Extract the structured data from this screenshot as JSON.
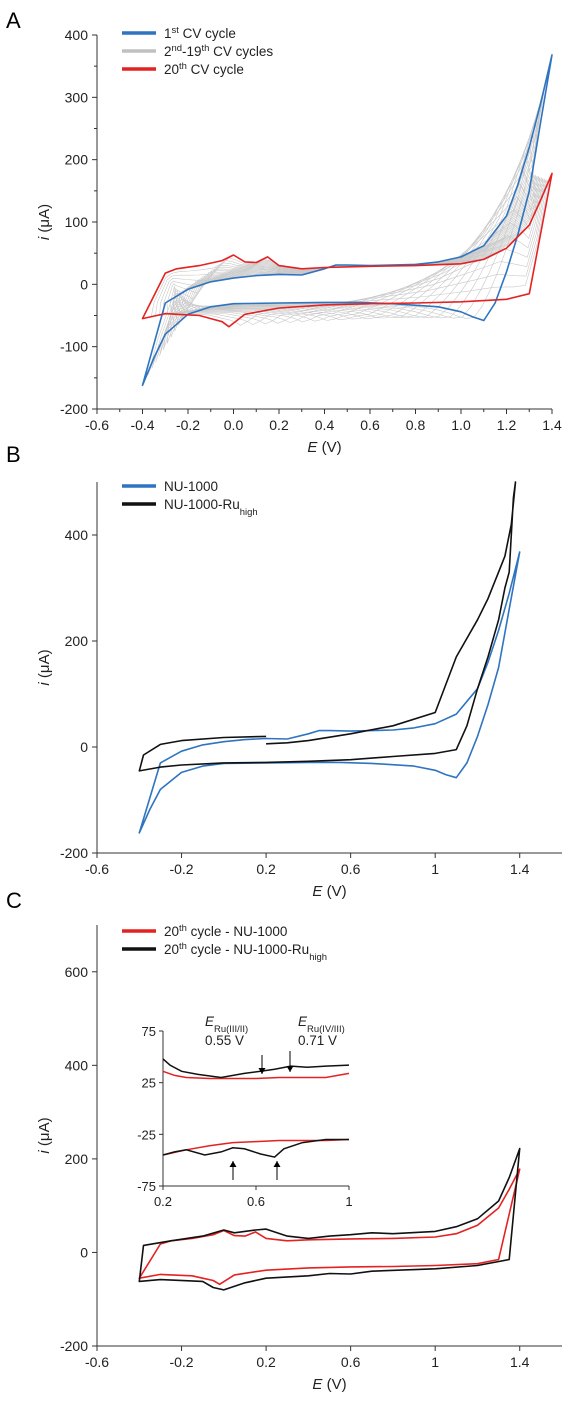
{
  "chart_data": [
    {
      "panel": "A",
      "type": "line",
      "xlabel_sym": "E",
      "xlabel_unit": "(V)",
      "ylabel_sym": "i",
      "ylabel_unit": "(μA)",
      "xlim": [
        -0.6,
        1.4
      ],
      "ylim": [
        -200,
        400
      ],
      "xticks": [
        -0.6,
        -0.4,
        -0.2,
        0.0,
        0.2,
        0.4,
        0.6,
        0.8,
        1.0,
        1.2,
        1.4
      ],
      "xtick_labels": [
        "-0.6",
        "-0.4",
        "-0.2",
        "0.0",
        "0.2",
        "0.4",
        "0.6",
        "0.8",
        "1.0",
        "1.2",
        "1.4"
      ],
      "yticks": [
        -200,
        -100,
        0,
        100,
        200,
        300,
        400
      ],
      "ytick_labels": [
        "-200",
        "-100",
        "0",
        "100",
        "200",
        "300",
        "400"
      ],
      "legend": [
        {
          "pre": "1",
          "sup": "st",
          "post": " CV cycle",
          "color": "#2f74c0"
        },
        {
          "pre": "2",
          "sup": "nd",
          "mid": "-19",
          "sup2": "th",
          "post": " CV cycles",
          "color": "#c0c0c0"
        },
        {
          "pre": "20",
          "sup": "th",
          "post": " CV cycle",
          "color": "#e42222"
        }
      ],
      "series": [
        {
          "key": "c1",
          "color": "#2f74c0",
          "x": [
            0.3,
            0.2,
            0.1,
            0.0,
            -0.1,
            -0.2,
            -0.3,
            -0.4,
            -0.35,
            -0.3,
            -0.2,
            -0.1,
            0.0,
            0.2,
            0.4,
            0.55,
            0.7,
            0.9,
            1.0,
            1.05,
            1.1,
            1.15,
            1.2,
            1.25,
            1.3,
            1.35,
            1.4,
            1.35,
            1.3,
            1.25,
            1.2,
            1.1,
            1.0,
            0.9,
            0.8,
            0.6,
            0.5,
            0.45,
            0.4,
            0.3
          ],
          "y": [
            15,
            16,
            14,
            10,
            4,
            -8,
            -30,
            -162,
            -118,
            -80,
            -48,
            -36,
            -31,
            -30,
            -29,
            -29,
            -31,
            -36,
            -44,
            -52,
            -58,
            -30,
            20,
            80,
            150,
            260,
            368,
            290,
            220,
            160,
            110,
            62,
            44,
            36,
            32,
            30,
            31,
            31,
            25,
            15
          ]
        },
        {
          "key": "c20",
          "color": "#e42222",
          "x": [
            0.3,
            0.2,
            0.15,
            0.1,
            0.05,
            0.0,
            -0.05,
            -0.15,
            -0.25,
            -0.3,
            -0.4,
            -0.3,
            -0.25,
            -0.15,
            -0.1,
            -0.05,
            -0.02,
            0.05,
            0.2,
            0.4,
            0.6,
            0.8,
            1.0,
            1.2,
            1.3,
            1.4,
            1.35,
            1.3,
            1.2,
            1.1,
            1.0,
            0.8,
            0.6,
            0.4,
            0.3
          ],
          "y": [
            25,
            30,
            44,
            35,
            36,
            47,
            38,
            30,
            25,
            18,
            -55,
            -47,
            -48,
            -50,
            -55,
            -60,
            -68,
            -48,
            -38,
            -33,
            -31,
            -30,
            -28,
            -24,
            -15,
            178,
            135,
            95,
            58,
            40,
            33,
            30,
            29,
            27,
            25
          ]
        }
      ],
      "gray_cycles": 18
    },
    {
      "panel": "B",
      "type": "line",
      "xlabel_sym": "E",
      "xlabel_unit": "(V)",
      "ylabel_sym": "i",
      "ylabel_unit": "(μA)",
      "xlim": [
        -0.6,
        1.6
      ],
      "ylim": [
        -200,
        500
      ],
      "xticks": [
        -0.6,
        -0.2,
        0.2,
        0.6,
        1.0,
        1.4
      ],
      "xtick_labels": [
        "-0.6",
        "-0.2",
        "0.2",
        "0.6",
        "1",
        "1.4"
      ],
      "yticks": [
        -200,
        0,
        200,
        400
      ],
      "ytick_labels": [
        "-200",
        "0",
        "200",
        "400"
      ],
      "legend": [
        {
          "pre": "NU-1000",
          "color": "#2f74c0"
        },
        {
          "pre": "NU-1000-Ru",
          "sub": "high",
          "color": "#111111"
        }
      ],
      "series": [
        {
          "key": "nu",
          "color": "#2f74c0",
          "x": [
            0.3,
            0.2,
            0.1,
            0.0,
            -0.1,
            -0.2,
            -0.3,
            -0.4,
            -0.35,
            -0.3,
            -0.2,
            -0.1,
            0.0,
            0.2,
            0.4,
            0.55,
            0.7,
            0.9,
            1.0,
            1.05,
            1.1,
            1.15,
            1.2,
            1.25,
            1.3,
            1.35,
            1.4,
            1.35,
            1.3,
            1.25,
            1.2,
            1.1,
            1.0,
            0.9,
            0.8,
            0.6,
            0.5,
            0.45,
            0.4,
            0.3
          ],
          "y": [
            15,
            16,
            14,
            10,
            4,
            -8,
            -30,
            -162,
            -118,
            -80,
            -48,
            -36,
            -31,
            -30,
            -29,
            -29,
            -31,
            -36,
            -44,
            -52,
            -58,
            -30,
            20,
            80,
            150,
            260,
            368,
            290,
            220,
            160,
            110,
            62,
            44,
            36,
            32,
            30,
            31,
            31,
            25,
            15
          ]
        },
        {
          "key": "ru",
          "color": "#111111",
          "x": [
            0.2,
            0.0,
            -0.2,
            -0.3,
            -0.38,
            -0.4,
            -0.3,
            -0.2,
            0.0,
            0.2,
            0.4,
            0.6,
            0.8,
            1.0,
            1.1,
            1.15,
            1.2,
            1.25,
            1.3,
            1.33,
            1.35,
            1.37,
            1.38,
            1.36,
            1.33,
            1.3,
            1.25,
            1.2,
            1.1,
            1.0,
            0.8,
            0.6,
            0.4,
            0.3,
            0.2
          ],
          "y": [
            20,
            18,
            12,
            5,
            -15,
            -45,
            -38,
            -34,
            -30,
            -29,
            -27,
            -24,
            -18,
            -12,
            -5,
            40,
            110,
            170,
            240,
            300,
            330,
            470,
            500,
            420,
            360,
            330,
            280,
            240,
            170,
            65,
            40,
            25,
            12,
            8,
            6
          ]
        }
      ]
    },
    {
      "panel": "C",
      "type": "line",
      "xlabel_sym": "E",
      "xlabel_unit": "(V)",
      "ylabel_sym": "i",
      "ylabel_unit": "(μA)",
      "xlim": [
        -0.6,
        1.6
      ],
      "ylim": [
        -200,
        700
      ],
      "xticks": [
        -0.6,
        -0.2,
        0.2,
        0.6,
        1.0,
        1.4
      ],
      "xtick_labels": [
        "-0.6",
        "-0.2",
        "0.2",
        "0.6",
        "1",
        "1.4"
      ],
      "yticks": [
        -200,
        0,
        200,
        400,
        600
      ],
      "ytick_labels": [
        "-200",
        "0",
        "200",
        "400",
        "600"
      ],
      "legend": [
        {
          "pre": "20",
          "sup": "th",
          "post": " cycle - NU-1000",
          "color": "#e42222"
        },
        {
          "pre": "20",
          "sup": "th",
          "post": " cycle - NU-1000-Ru",
          "sub": "high",
          "color": "#111111"
        }
      ],
      "series": [
        {
          "key": "nu20",
          "color": "#e42222",
          "x": [
            0.3,
            0.2,
            0.15,
            0.1,
            0.05,
            0.0,
            -0.05,
            -0.15,
            -0.25,
            -0.3,
            -0.4,
            -0.3,
            -0.25,
            -0.15,
            -0.1,
            -0.05,
            -0.02,
            0.05,
            0.2,
            0.4,
            0.6,
            0.8,
            1.0,
            1.2,
            1.3,
            1.4,
            1.35,
            1.3,
            1.2,
            1.1,
            1.0,
            0.8,
            0.6,
            0.4,
            0.3
          ],
          "y": [
            25,
            30,
            44,
            35,
            36,
            47,
            38,
            30,
            25,
            18,
            -55,
            -47,
            -48,
            -50,
            -55,
            -60,
            -68,
            -48,
            -38,
            -33,
            -31,
            -30,
            -28,
            -24,
            -15,
            178,
            135,
            95,
            58,
            40,
            33,
            30,
            29,
            27,
            25
          ]
        },
        {
          "key": "ru20",
          "color": "#111111",
          "x": [
            0.3,
            0.2,
            0.15,
            0.05,
            0.0,
            -0.1,
            -0.25,
            -0.38,
            -0.4,
            -0.3,
            -0.1,
            -0.05,
            0.0,
            0.1,
            0.2,
            0.4,
            0.5,
            0.6,
            0.7,
            1.0,
            1.2,
            1.35,
            1.4,
            1.35,
            1.3,
            1.2,
            1.1,
            1.0,
            0.8,
            0.7,
            0.6,
            0.5,
            0.4,
            0.3
          ],
          "y": [
            35,
            50,
            48,
            42,
            48,
            35,
            25,
            15,
            -62,
            -58,
            -62,
            -75,
            -80,
            -65,
            -55,
            -50,
            -45,
            -46,
            -40,
            -35,
            -28,
            -15,
            222,
            160,
            110,
            72,
            55,
            45,
            40,
            42,
            38,
            35,
            30,
            35
          ]
        }
      ],
      "inset": {
        "xlim": [
          0.2,
          1.0
        ],
        "ylim": [
          -75,
          75
        ],
        "xticks": [
          0.2,
          0.6,
          1.0
        ],
        "xtick_labels": [
          "0.2",
          "0.6",
          "1"
        ],
        "yticks": [
          -75,
          -25,
          25,
          75
        ],
        "ytick_labels": [
          "-75",
          "-25",
          "25",
          "75"
        ],
        "annotations": [
          {
            "sym": "E",
            "sub": "Ru(III/II)",
            "value": "0.55 V",
            "x": 0.62
          },
          {
            "sym": "E",
            "sub": "Ru(IV/III)",
            "value": "0.71 V",
            "x": 0.75
          }
        ],
        "series": [
          {
            "color": "#e42222",
            "x": [
              0.2,
              0.25,
              0.3,
              0.4,
              0.5,
              0.6,
              0.7,
              0.8,
              0.9,
              1.0
            ],
            "y": [
              36,
              32,
              30,
              29,
              29,
              29,
              30,
              30,
              30,
              34
            ],
            "x2": [
              0.2,
              0.3,
              0.4,
              0.5,
              0.6,
              0.7,
              0.8,
              0.9,
              1.0
            ],
            "y2": [
              -45,
              -40,
              -36,
              -33,
              -32,
              -31,
              -31,
              -31,
              -30
            ]
          },
          {
            "color": "#111111",
            "x": [
              0.2,
              0.23,
              0.28,
              0.35,
              0.45,
              0.55,
              0.62,
              0.68,
              0.75,
              0.82,
              0.9,
              1.0
            ],
            "y": [
              48,
              42,
              36,
              33,
              30,
              34,
              36,
              38,
              41,
              40,
              41,
              42
            ],
            "x2": [
              0.2,
              0.25,
              0.3,
              0.38,
              0.45,
              0.5,
              0.55,
              0.62,
              0.68,
              0.72,
              0.8,
              0.9,
              1.0
            ],
            "y2": [
              -45,
              -42,
              -40,
              -45,
              -42,
              -38,
              -39,
              -44,
              -47,
              -39,
              -33,
              -30,
              -30
            ]
          }
        ]
      }
    }
  ]
}
